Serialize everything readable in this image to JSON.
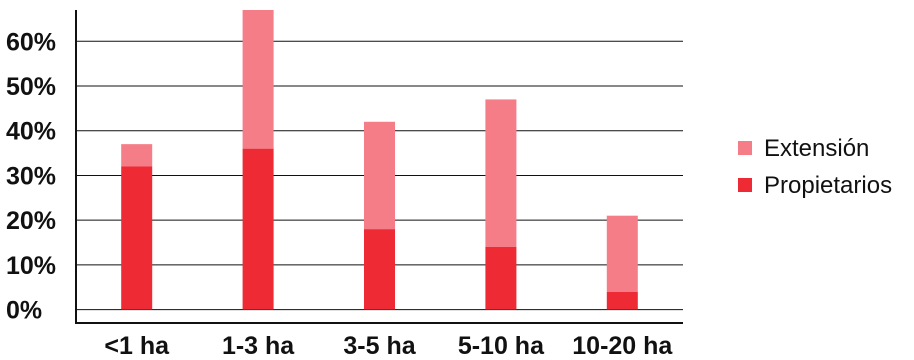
{
  "chart_data": {
    "type": "bar",
    "stacked": true,
    "categories": [
      "<1 ha",
      "1-3 ha",
      "3-5 ha",
      "5-10 ha",
      "10-20 ha"
    ],
    "series": [
      {
        "name": "Propietarios",
        "color": "#ee2a35",
        "values": [
          32,
          36,
          18,
          14,
          4
        ]
      },
      {
        "name": "Extensión",
        "color": "#f47d88",
        "values": [
          5,
          31,
          24,
          33,
          17
        ]
      }
    ],
    "y_ticks": [
      "0%",
      "10%",
      "20%",
      "30%",
      "40%",
      "50%",
      "60%"
    ],
    "y_tick_values": [
      0,
      10,
      20,
      30,
      40,
      50,
      60
    ],
    "ylim": [
      -3,
      67
    ],
    "grid": true,
    "legend_position": "right",
    "legend_order": [
      "Extensión",
      "Propietarios"
    ],
    "axis_color": "#111111",
    "title": "",
    "xlabel": "",
    "ylabel": ""
  }
}
